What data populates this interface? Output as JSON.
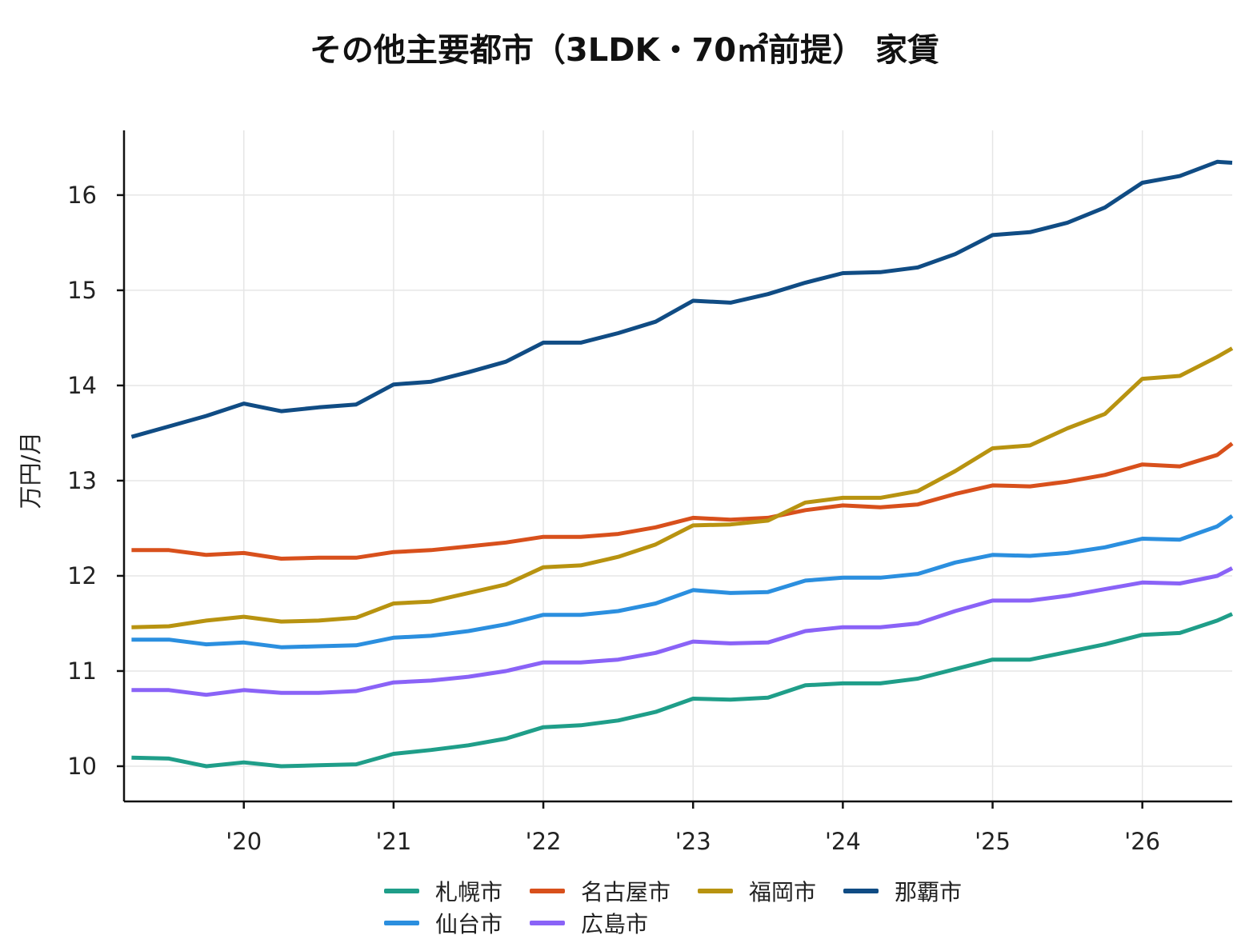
{
  "chart_data": {
    "type": "line",
    "title": "その他主要都市（3LDK・70㎡前提） 家賃",
    "ylabel": "万円/月",
    "xlabel": "",
    "xlim": [
      2019.2,
      2026.6
    ],
    "ylim": [
      9.63,
      16.68
    ],
    "yticks": [
      10,
      11,
      12,
      13,
      14,
      15,
      16
    ],
    "xticks": [
      {
        "value": 2020,
        "label": "'20"
      },
      {
        "value": 2021,
        "label": "'21"
      },
      {
        "value": 2022,
        "label": "'22"
      },
      {
        "value": 2023,
        "label": "'23"
      },
      {
        "value": 2024,
        "label": "'24"
      },
      {
        "value": 2025,
        "label": "'25"
      },
      {
        "value": 2026,
        "label": "'26"
      }
    ],
    "grid": true,
    "legend_position": "bottom",
    "x": [
      2019.25,
      2019.5,
      2019.75,
      2020.0,
      2020.25,
      2020.5,
      2020.75,
      2021.0,
      2021.25,
      2021.5,
      2021.75,
      2022.0,
      2022.25,
      2022.5,
      2022.75,
      2023.0,
      2023.25,
      2023.5,
      2023.75,
      2024.0,
      2024.25,
      2024.5,
      2024.75,
      2025.0,
      2025.25,
      2025.5,
      2025.75,
      2026.0,
      2026.25,
      2026.5,
      2026.6
    ],
    "series": [
      {
        "name": "札幌市",
        "color": "#1f9e89",
        "values": [
          10.09,
          10.08,
          10.0,
          10.04,
          10.0,
          10.01,
          10.02,
          10.13,
          10.17,
          10.22,
          10.29,
          10.41,
          10.43,
          10.48,
          10.57,
          10.71,
          10.7,
          10.72,
          10.85,
          10.87,
          10.87,
          10.92,
          11.02,
          11.12,
          11.12,
          11.2,
          11.28,
          11.38,
          11.4,
          11.53,
          11.6
        ]
      },
      {
        "name": "仙台市",
        "color": "#2b8fdf",
        "values": [
          11.33,
          11.33,
          11.28,
          11.3,
          11.25,
          11.26,
          11.27,
          11.35,
          11.37,
          11.42,
          11.49,
          11.59,
          11.59,
          11.63,
          11.71,
          11.85,
          11.82,
          11.83,
          11.95,
          11.98,
          11.98,
          12.02,
          12.14,
          12.22,
          12.21,
          12.24,
          12.3,
          12.39,
          12.38,
          12.52,
          12.63
        ]
      },
      {
        "name": "広島市",
        "color": "#8a63f7",
        "values": [
          10.8,
          10.8,
          10.75,
          10.8,
          10.77,
          10.77,
          10.79,
          10.88,
          10.9,
          10.94,
          11.0,
          11.09,
          11.09,
          11.12,
          11.19,
          11.31,
          11.29,
          11.3,
          11.42,
          11.46,
          11.46,
          11.5,
          11.63,
          11.74,
          11.74,
          11.79,
          11.86,
          11.93,
          11.92,
          12.0,
          12.08
        ]
      },
      {
        "name": "名古屋市",
        "color": "#d8501c",
        "values": [
          12.27,
          12.27,
          12.22,
          12.24,
          12.18,
          12.19,
          12.19,
          12.25,
          12.27,
          12.31,
          12.35,
          12.41,
          12.41,
          12.44,
          12.51,
          12.61,
          12.59,
          12.61,
          12.69,
          12.74,
          12.72,
          12.75,
          12.86,
          12.95,
          12.94,
          12.99,
          13.06,
          13.17,
          13.15,
          13.27,
          13.39
        ]
      },
      {
        "name": "福岡市",
        "color": "#b89310",
        "values": [
          11.46,
          11.47,
          11.53,
          11.57,
          11.52,
          11.53,
          11.56,
          11.71,
          11.73,
          11.82,
          11.91,
          12.09,
          12.11,
          12.2,
          12.33,
          12.53,
          12.54,
          12.58,
          12.77,
          12.82,
          12.82,
          12.89,
          13.1,
          13.34,
          13.37,
          13.55,
          13.7,
          14.07,
          14.1,
          14.3,
          14.39
        ]
      },
      {
        "name": "那覇市",
        "color": "#104c84",
        "values": [
          13.46,
          13.57,
          13.68,
          13.81,
          13.73,
          13.77,
          13.8,
          14.01,
          14.04,
          14.14,
          14.25,
          14.45,
          14.45,
          14.55,
          14.67,
          14.89,
          14.87,
          14.96,
          15.08,
          15.18,
          15.19,
          15.24,
          15.38,
          15.58,
          15.61,
          15.71,
          15.87,
          16.13,
          16.2,
          16.35,
          16.34
        ]
      }
    ]
  },
  "legend": {
    "rows": [
      [
        {
          "label": "札幌市",
          "color": "#1f9e89"
        },
        {
          "label": "名古屋市",
          "color": "#d8501c"
        },
        {
          "label": "福岡市",
          "color": "#b89310"
        },
        {
          "label": "那覇市",
          "color": "#104c84"
        }
      ],
      [
        {
          "label": "仙台市",
          "color": "#2b8fdf"
        },
        {
          "label": "広島市",
          "color": "#8a63f7"
        }
      ]
    ]
  }
}
